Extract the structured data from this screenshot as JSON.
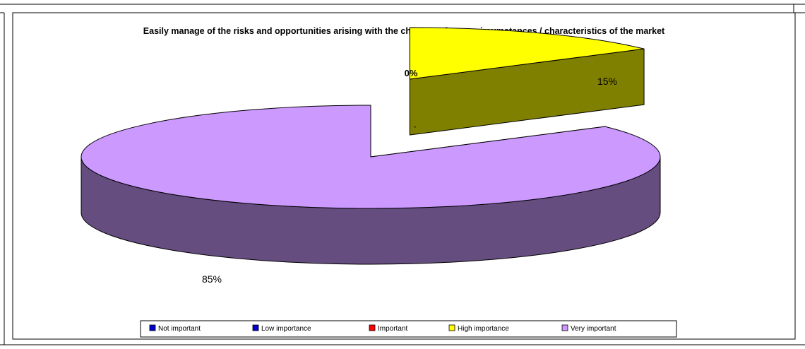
{
  "chart_data": {
    "type": "pie",
    "title": "Easily manage of the risks and opportunities arising with the changes of some circumstances / characteristics of the market",
    "slices": [
      {
        "label": "Not important",
        "value": 0,
        "display": "",
        "color": "#0000CC"
      },
      {
        "label": "Low importance",
        "value": 0,
        "display": "",
        "color": "#0000CC"
      },
      {
        "label": "Important",
        "value": 0,
        "display": "0%",
        "color": "#FF0000"
      },
      {
        "label": "High importance",
        "value": 15,
        "display": "15%",
        "color": "#FFFF00"
      },
      {
        "label": "Very important",
        "value": 85,
        "display": "85%",
        "color": "#CC99FF"
      }
    ],
    "legend_position": "bottom",
    "three_d": true
  }
}
